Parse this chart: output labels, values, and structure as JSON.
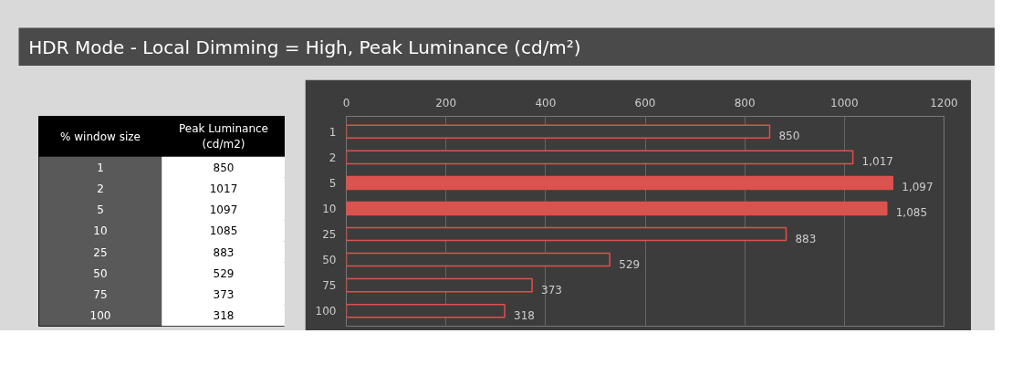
{
  "chart_data": [
    {
      "type": "heatmap",
      "ylabel": "% window size",
      "categories": [
        "Peak Luminance (cd/m2)"
      ],
      "y_categories": [
        "1",
        "2",
        "5",
        "10",
        "25",
        "50",
        "75",
        "100"
      ],
      "cells": [
        [
          850
        ],
        [
          1017
        ],
        [
          1097
        ],
        [
          1085
        ],
        [
          883
        ],
        [
          529
        ],
        [
          373
        ],
        [
          318
        ]
      ],
      "data_labels": true
    },
    {
      "type": "bar",
      "orientation": "horizontal",
      "title": "HDR Mode - Local Dimming = High, Peak Luminance (cd/m²)",
      "categories": [
        "1",
        "2",
        "5",
        "10",
        "25",
        "50",
        "75",
        "100"
      ],
      "values": [
        850,
        1017,
        1097,
        1085,
        883,
        529,
        373,
        318
      ],
      "color": "#e0504a",
      "colors": [
        "#3c3c3c",
        "#3c3c3c",
        "#d9534f",
        "#d9534f",
        "#3c3c3c",
        "#3c3c3c",
        "#3c3c3c",
        "#3c3c3c"
      ],
      "value_labels": [
        "850",
        "1,017",
        "1,097",
        "1,085",
        "883",
        "529",
        "373",
        "318"
      ],
      "xlim": [
        0,
        1200
      ],
      "xticks": [
        0,
        200,
        400,
        600,
        800,
        1000,
        1200
      ],
      "grid": "x"
    }
  ]
}
